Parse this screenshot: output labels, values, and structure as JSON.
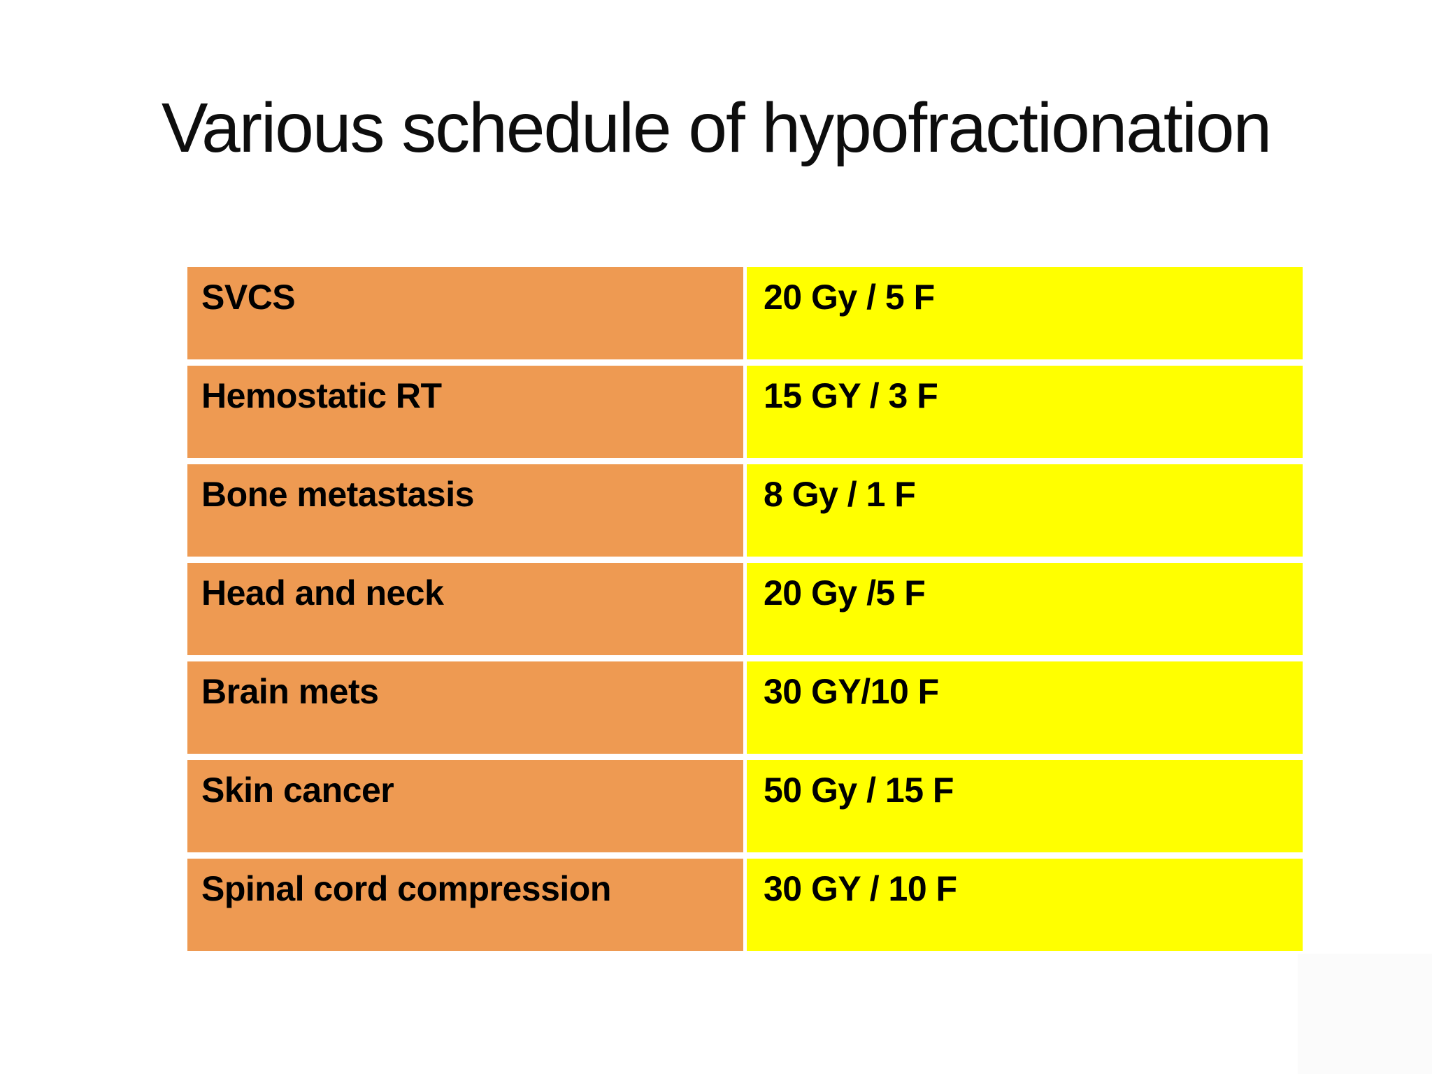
{
  "slide": {
    "title": "Various schedule of hypofractionation",
    "colors": {
      "label_column": "#EE9A52",
      "value_column": "#FFFF00",
      "text": "#000000",
      "background": "#FFFFFF",
      "corner_shade": "#FBFBFB"
    },
    "table": {
      "rows": [
        {
          "label": "SVCS",
          "value": "20 Gy / 5 F"
        },
        {
          "label": "Hemostatic RT",
          "value": "15 GY / 3 F"
        },
        {
          "label": "Bone metastasis",
          "value": "8 Gy / 1 F"
        },
        {
          "label": "Head and neck",
          "value": "20 Gy /5 F"
        },
        {
          "label": "Brain mets",
          "value": "30 GY/10 F"
        },
        {
          "label": "Skin cancer",
          "value": "50 Gy / 15 F"
        },
        {
          "label": "Spinal cord compression",
          "value": "30 GY / 10 F"
        }
      ]
    }
  }
}
